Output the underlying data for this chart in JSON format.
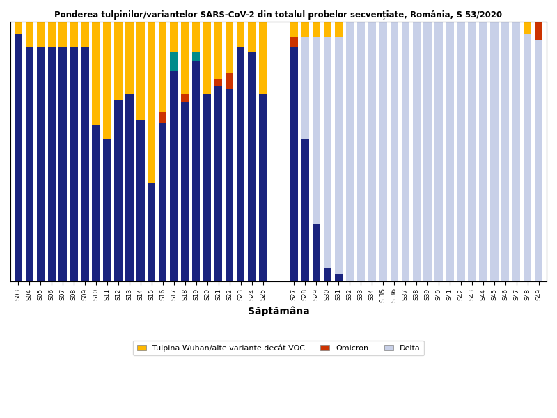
{
  "title": "Ponderea tulpinilor/variantelor SARS-CoV-2 din totalul probelor secvențiate, România, S 53/2020",
  "xlabel": "Săptămâna",
  "colors": {
    "wuhan": "#FFB800",
    "omicron": "#CC3300",
    "delta_dark": "#1A237E",
    "delta_light": "#C8D0E8",
    "other": "#008B8B"
  },
  "legend_labels": [
    "Tulpina Wuhan/alte variante decât VOC",
    "Omicron",
    "Delta"
  ],
  "weeks_part1": [
    "S03",
    "S04",
    "S05",
    "S06",
    "S07",
    "S08",
    "S09",
    "S10",
    "S11",
    "S12",
    "S13",
    "S14",
    "S15",
    "S16",
    "S17",
    "S18",
    "S19",
    "S20",
    "S21",
    "S22",
    "S23",
    "S24",
    "S25"
  ],
  "weeks_part2": [
    "S27",
    "S28",
    "S29",
    "S30",
    "S31",
    "S32",
    "S33",
    "S34",
    "S 35",
    "S 36",
    "S37",
    "S38",
    "S39",
    "S40",
    "S41",
    "S42",
    "S43",
    "S44",
    "S45",
    "S46",
    "S47",
    "S48",
    "S49"
  ],
  "data_part1": {
    "wuhan": [
      0.05,
      0.1,
      0.1,
      0.1,
      0.1,
      0.1,
      0.1,
      0.4,
      0.45,
      0.3,
      0.28,
      0.38,
      0.62,
      0.35,
      0.12,
      0.28,
      0.12,
      0.28,
      0.22,
      0.2,
      0.1,
      0.12,
      0.28
    ],
    "other": [
      0.0,
      0.0,
      0.0,
      0.0,
      0.0,
      0.0,
      0.0,
      0.0,
      0.0,
      0.0,
      0.0,
      0.0,
      0.0,
      0.0,
      0.07,
      0.0,
      0.03,
      0.0,
      0.0,
      0.0,
      0.0,
      0.0,
      0.0
    ],
    "omicron": [
      0.0,
      0.0,
      0.0,
      0.0,
      0.0,
      0.0,
      0.0,
      0.0,
      0.0,
      0.0,
      0.0,
      0.0,
      0.0,
      0.04,
      0.0,
      0.03,
      0.0,
      0.0,
      0.03,
      0.06,
      0.0,
      0.0,
      0.0
    ],
    "delta": [
      0.95,
      0.9,
      0.9,
      0.9,
      0.9,
      0.9,
      0.9,
      0.6,
      0.55,
      0.7,
      0.72,
      0.62,
      0.38,
      0.61,
      0.81,
      0.69,
      0.85,
      0.72,
      0.75,
      0.74,
      0.9,
      0.88,
      0.72
    ]
  },
  "data_part2": {
    "wuhan": [
      0.06,
      0.06,
      0.06,
      0.06,
      0.06,
      0.0,
      0.0,
      0.0,
      0.0,
      0.0,
      0.0,
      0.0,
      0.0,
      0.0,
      0.0,
      0.0,
      0.0,
      0.0,
      0.0,
      0.0,
      0.0,
      0.05,
      0.0
    ],
    "omicron": [
      0.04,
      0.0,
      0.0,
      0.0,
      0.0,
      0.0,
      0.0,
      0.0,
      0.0,
      0.0,
      0.0,
      0.0,
      0.0,
      0.0,
      0.0,
      0.0,
      0.0,
      0.0,
      0.0,
      0.0,
      0.0,
      0.0,
      0.07
    ],
    "delta_dark": [
      0.9,
      0.55,
      0.22,
      0.05,
      0.03,
      0.0,
      0.0,
      0.0,
      0.0,
      0.0,
      0.0,
      0.0,
      0.0,
      0.0,
      0.0,
      0.0,
      0.0,
      0.0,
      0.0,
      0.0,
      0.0,
      0.0,
      0.0
    ],
    "delta_light": [
      0.0,
      0.39,
      0.72,
      0.89,
      0.91,
      1.0,
      1.0,
      1.0,
      1.0,
      1.0,
      1.0,
      1.0,
      1.0,
      1.0,
      1.0,
      1.0,
      1.0,
      1.0,
      1.0,
      1.0,
      1.0,
      0.95,
      0.93
    ]
  }
}
